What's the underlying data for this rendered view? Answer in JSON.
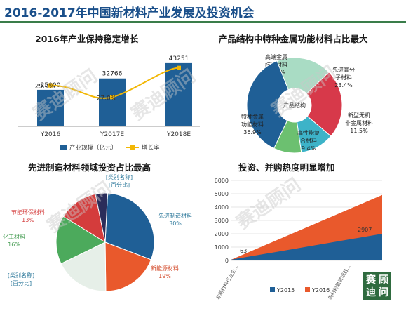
{
  "page": {
    "title": "2016-2017年中国新材料产业发展及投资机会",
    "watermark": "赛迪顾问",
    "logo_chars": [
      "赛",
      "顾",
      "迪",
      "问"
    ]
  },
  "colors": {
    "blue": "#1f5f96",
    "yellow": "#f2b705",
    "title": "#1a4f8a",
    "green": "#3a7d4a",
    "orange": "#e9592c",
    "red": "#d43c3c",
    "teal": "#2aa9a9",
    "lightgreen": "#4caa5c",
    "lightgray": "#cfe8de",
    "darkpurple": "#2b2d5a"
  },
  "chart_data": [
    {
      "type": "bar",
      "title": "2016年产业保持稳定增长",
      "categories": [
        "Y2016",
        "Y2017E",
        "Y2018E"
      ],
      "series": [
        {
          "name": "产业规模（亿元）",
          "values": [
            25000,
            32766,
            43251
          ],
          "labels": [
            "25000",
            "32766",
            "43251"
          ]
        },
        {
          "name": "增长率",
          "values": [
            29.0,
            27.0,
            32.0
          ],
          "labels": [
            "29.0%",
            "27.0%",
            ""
          ]
        }
      ],
      "legend": "bottom"
    },
    {
      "type": "pie",
      "title": "产品结构中特种金属功能材料占比最大",
      "center_label": "产品结构",
      "slices": [
        {
          "label": "高端金属结构材料",
          "value": 18.8,
          "value_label": "18.8%"
        },
        {
          "label": "先进高分子材料",
          "value": 23.4,
          "value_label": "23.4%"
        },
        {
          "label": "新型无机非金属材料",
          "value": 11.5,
          "value_label": "11.5%"
        },
        {
          "label": "高性能复合材料",
          "value": 9.4,
          "value_label": "9.4%"
        },
        {
          "label": "特种金属功能材料",
          "value": 36.9,
          "value_label": "36.9%"
        }
      ]
    },
    {
      "type": "pie",
      "title": "先进制造材料领域投资占比最高",
      "slices": [
        {
          "label": "先进制造材料",
          "value": 30,
          "value_label": "30%"
        },
        {
          "label": "新能源材料",
          "value": 19,
          "value_label": "19%"
        },
        {
          "label": "[类别名称]",
          "value": 18,
          "value_label": "[百分比]"
        },
        {
          "label": "化工材料",
          "value": 16,
          "value_label": "16%"
        },
        {
          "label": "节能环保材料",
          "value": 13,
          "value_label": "13%"
        },
        {
          "label": "[类别名称]",
          "value": 4,
          "value_label": "[百分比]"
        }
      ]
    },
    {
      "type": "area",
      "title": "投资、并购热度明显增加",
      "categories": [
        "非新材料行业企...",
        "新材料融资项目..."
      ],
      "series": [
        {
          "name": "Y2015",
          "values": [
            63,
            2000
          ]
        },
        {
          "name": "Y2016",
          "values": [
            63,
            4907
          ]
        }
      ],
      "annotations": [
        "63",
        "2907"
      ],
      "yticks": [
        "0",
        "1000",
        "2000",
        "3000",
        "4000",
        "5000",
        "6000"
      ],
      "ylim": [
        0,
        6000
      ],
      "legend": "bottom"
    }
  ]
}
